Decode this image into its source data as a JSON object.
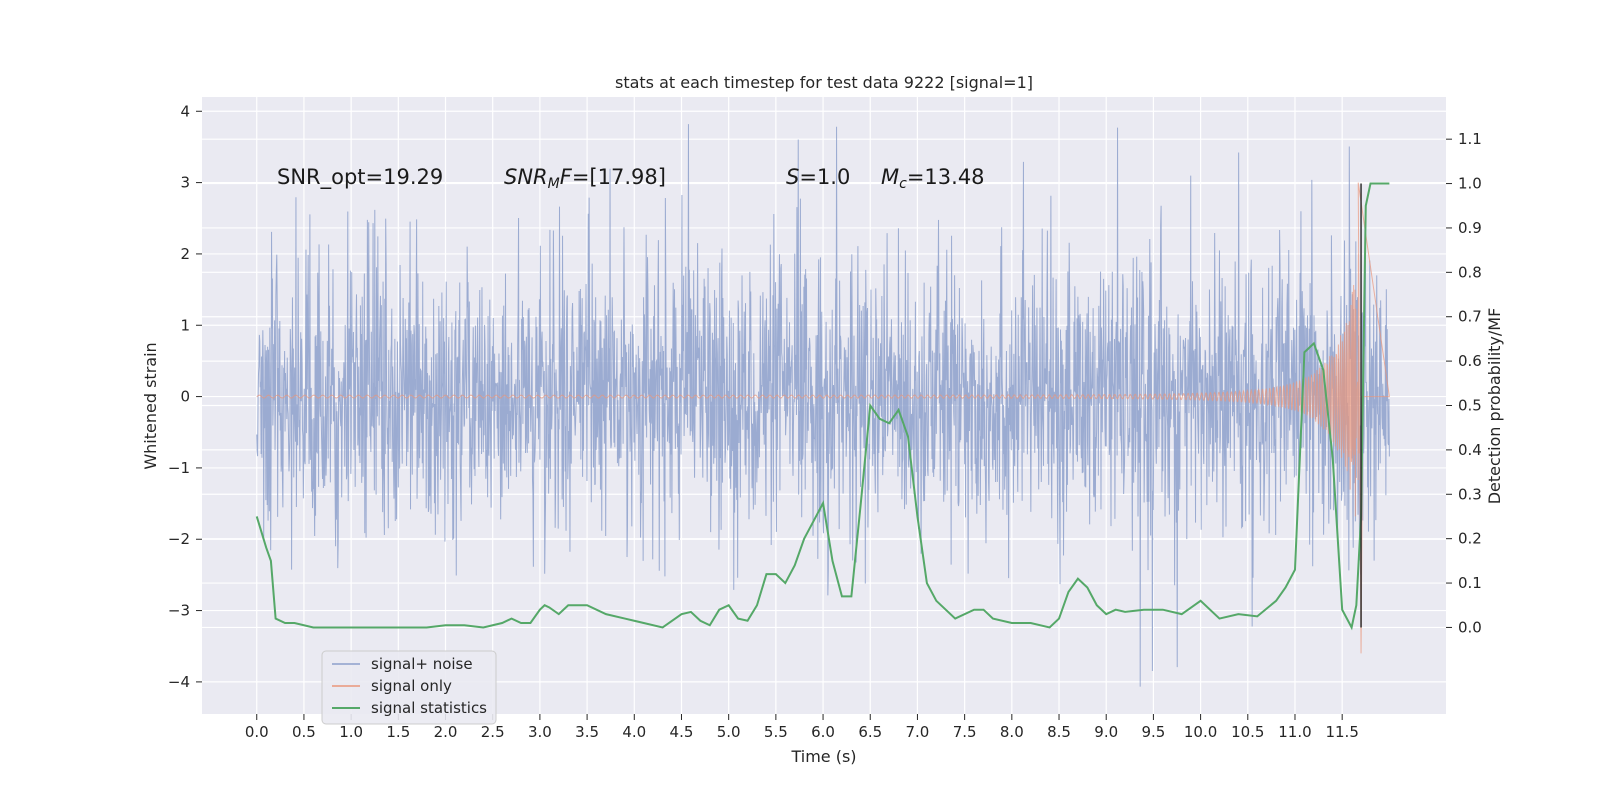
{
  "chart_data": {
    "type": "line",
    "title": "stats at each timestep for test data 9222 [signal=1]",
    "xlabel": "Time (s)",
    "ylabel_left": "Whitened strain",
    "ylabel_right": "Detection probability/MF",
    "xlim": [
      -0.58,
      12.6
    ],
    "ylim_left": [
      -4.45,
      4.2
    ],
    "ylim_right": [
      -0.195,
      1.195
    ],
    "x_ticks": [
      0.0,
      0.5,
      1.0,
      1.5,
      2.0,
      2.5,
      3.0,
      3.5,
      4.0,
      4.5,
      5.0,
      5.5,
      6.0,
      6.5,
      7.0,
      7.5,
      8.0,
      8.5,
      9.0,
      9.5,
      10.0,
      10.5,
      11.0,
      11.5
    ],
    "x_tick_labels": [
      "0.0",
      "0.5",
      "1.0",
      "1.5",
      "2.0",
      "2.5",
      "3.0",
      "3.5",
      "4.0",
      "4.5",
      "5.0",
      "5.5",
      "6.0",
      "6.5",
      "7.0",
      "7.5",
      "8.0",
      "8.5",
      "9.0",
      "9.5",
      "10.0",
      "10.5",
      "11.0",
      "11.5"
    ],
    "y_left_ticks": [
      -4,
      -3,
      -2,
      -1,
      0,
      1,
      2,
      3,
      4
    ],
    "y_left_tick_labels": [
      "−4",
      "−3",
      "−2",
      "−1",
      "0",
      "1",
      "2",
      "3",
      "4"
    ],
    "y_right_ticks": [
      0.0,
      0.1,
      0.2,
      0.3,
      0.4,
      0.5,
      0.6,
      0.7,
      0.8,
      0.9,
      1.0,
      1.1
    ],
    "y_right_tick_labels": [
      "0.0",
      "0.1",
      "0.2",
      "0.3",
      "0.4",
      "0.5",
      "0.6",
      "0.7",
      "0.8",
      "0.9",
      "1.0",
      "1.1"
    ],
    "grid": true,
    "legend_position": "lower-left",
    "colors": {
      "background": "#eaeaf2",
      "grid": "#ffffff",
      "noise": "#8da0cb",
      "signal": "#e9967a",
      "stat": "#55a868"
    },
    "series": [
      {
        "name": "signal+ noise",
        "axis": "left",
        "duration_s": 12.0,
        "approx_band": [
          -1.8,
          1.8
        ],
        "approx_peak_range": [
          -4.1,
          3.8
        ]
      },
      {
        "name": "signal only",
        "axis": "left",
        "duration_s": 12.0,
        "description_points": [
          [
            0.0,
            0.02
          ],
          [
            7.5,
            0.05
          ],
          [
            9.0,
            0.12
          ],
          [
            10.0,
            0.2
          ],
          [
            11.0,
            0.5
          ],
          [
            11.5,
            1.3
          ],
          [
            11.65,
            3.0
          ],
          [
            11.7,
            -3.6
          ],
          [
            11.75,
            0.0
          ]
        ]
      },
      {
        "name": "signal statistics",
        "axis": "right",
        "x": [
          0.0,
          0.1,
          0.15,
          0.2,
          0.3,
          0.4,
          0.6,
          0.8,
          1.0,
          1.2,
          1.5,
          1.8,
          2.0,
          2.2,
          2.4,
          2.6,
          2.7,
          2.8,
          2.9,
          3.0,
          3.05,
          3.1,
          3.2,
          3.3,
          3.5,
          3.7,
          3.9,
          4.1,
          4.3,
          4.5,
          4.6,
          4.7,
          4.8,
          4.9,
          5.0,
          5.1,
          5.2,
          5.3,
          5.4,
          5.5,
          5.6,
          5.7,
          5.8,
          5.9,
          6.0,
          6.1,
          6.2,
          6.3,
          6.4,
          6.5,
          6.6,
          6.7,
          6.8,
          6.9,
          7.0,
          7.1,
          7.2,
          7.4,
          7.6,
          7.7,
          7.8,
          8.0,
          8.2,
          8.4,
          8.5,
          8.6,
          8.7,
          8.8,
          8.9,
          9.0,
          9.1,
          9.2,
          9.4,
          9.6,
          9.8,
          10.0,
          10.2,
          10.4,
          10.6,
          10.8,
          10.9,
          11.0,
          11.1,
          11.2,
          11.3,
          11.4,
          11.5,
          11.6,
          11.65,
          11.7,
          11.75,
          11.8,
          11.9,
          12.0
        ],
        "y": [
          0.25,
          0.18,
          0.15,
          0.02,
          0.01,
          0.01,
          0.0,
          0.0,
          0.0,
          0.0,
          0.0,
          0.0,
          0.005,
          0.005,
          0.0,
          0.01,
          0.02,
          0.01,
          0.01,
          0.04,
          0.05,
          0.045,
          0.03,
          0.05,
          0.05,
          0.03,
          0.02,
          0.01,
          0.0,
          0.03,
          0.035,
          0.015,
          0.005,
          0.04,
          0.05,
          0.02,
          0.015,
          0.05,
          0.12,
          0.12,
          0.1,
          0.14,
          0.2,
          0.24,
          0.28,
          0.15,
          0.07,
          0.07,
          0.28,
          0.5,
          0.47,
          0.46,
          0.49,
          0.43,
          0.25,
          0.1,
          0.06,
          0.02,
          0.04,
          0.04,
          0.02,
          0.01,
          0.01,
          0.0,
          0.02,
          0.08,
          0.11,
          0.09,
          0.05,
          0.03,
          0.04,
          0.035,
          0.04,
          0.04,
          0.03,
          0.06,
          0.02,
          0.03,
          0.025,
          0.06,
          0.09,
          0.13,
          0.62,
          0.64,
          0.58,
          0.38,
          0.04,
          0.0,
          0.05,
          0.25,
          0.95,
          1.0,
          1.0,
          1.0
        ]
      }
    ],
    "annotations": [
      {
        "id": "snr_opt",
        "text": "SNR_opt=19.29"
      },
      {
        "id": "snr_mf",
        "text": "SNR_MF=[17.98]"
      },
      {
        "id": "s",
        "text": "S=1.0"
      },
      {
        "id": "mc",
        "text": "M_c=13.48"
      }
    ]
  },
  "legend": {
    "items": [
      {
        "label": "signal+ noise",
        "color": "#8da0cb"
      },
      {
        "label": "signal only",
        "color": "#e9967a"
      },
      {
        "label": "signal statistics",
        "color": "#55a868"
      }
    ]
  },
  "text": {
    "snr_opt": "SNR_opt=19.29",
    "snr_mf_main": "SNR",
    "snr_mf_sub": "M",
    "snr_mf_rest": "F=[17.98]",
    "s_var": "S",
    "s_rest": "=1.0",
    "mc_var": "M",
    "mc_sub": "c",
    "mc_rest": "=13.48"
  }
}
